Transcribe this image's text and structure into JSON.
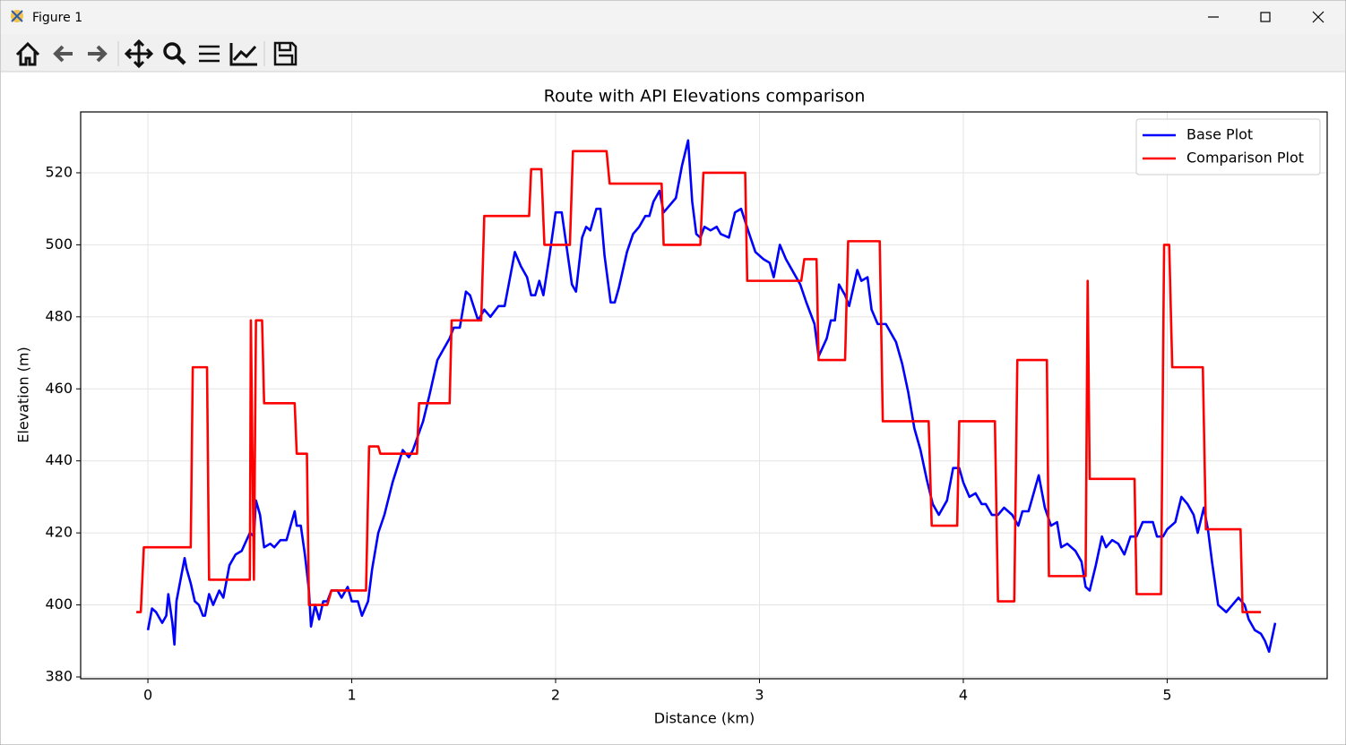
{
  "window": {
    "title": "Figure 1"
  },
  "chart_data": {
    "type": "line",
    "title": "Route with API Elevations comparison",
    "xlabel": "Distance (km)",
    "ylabel": "Elevation (m)",
    "xlim": [
      -0.33,
      5.785
    ],
    "ylim": [
      379.5,
      536.9
    ],
    "xticks": [
      0,
      1,
      2,
      3,
      4,
      5
    ],
    "yticks": [
      380,
      400,
      420,
      440,
      460,
      480,
      500,
      520
    ],
    "grid": true,
    "legend": "upper right",
    "series": [
      {
        "name": "Base Plot",
        "color": "#0000ff",
        "x": [
          0,
          0.02,
          0.04,
          0.07,
          0.09,
          0.1,
          0.12,
          0.13,
          0.14,
          0.16,
          0.18,
          0.19,
          0.21,
          0.23,
          0.25,
          0.27,
          0.28,
          0.3,
          0.32,
          0.35,
          0.37,
          0.4,
          0.43,
          0.46,
          0.5,
          0.52,
          0.53,
          0.55,
          0.57,
          0.6,
          0.62,
          0.65,
          0.68,
          0.7,
          0.72,
          0.73,
          0.75,
          0.77,
          0.79,
          0.8,
          0.82,
          0.84,
          0.86,
          0.88,
          0.9,
          0.93,
          0.95,
          0.98,
          1.0,
          1.03,
          1.05,
          1.08,
          1.1,
          1.13,
          1.16,
          1.2,
          1.25,
          1.28,
          1.3,
          1.35,
          1.38,
          1.42,
          1.45,
          1.48,
          1.5,
          1.53,
          1.56,
          1.58,
          1.62,
          1.65,
          1.68,
          1.72,
          1.75,
          1.78,
          1.8,
          1.83,
          1.86,
          1.88,
          1.9,
          1.92,
          1.94,
          1.97,
          2.0,
          2.03,
          2.06,
          2.08,
          2.1,
          2.13,
          2.15,
          2.17,
          2.2,
          2.22,
          2.24,
          2.27,
          2.29,
          2.31,
          2.35,
          2.38,
          2.41,
          2.44,
          2.46,
          2.48,
          2.51,
          2.53,
          2.56,
          2.59,
          2.62,
          2.65,
          2.67,
          2.69,
          2.71,
          2.73,
          2.76,
          2.79,
          2.81,
          2.85,
          2.88,
          2.91,
          2.95,
          2.98,
          3.02,
          3.05,
          3.07,
          3.1,
          3.13,
          3.16,
          3.2,
          3.23,
          3.27,
          3.29,
          3.33,
          3.35,
          3.37,
          3.39,
          3.42,
          3.44,
          3.48,
          3.5,
          3.53,
          3.55,
          3.58,
          3.62,
          3.67,
          3.7,
          3.73,
          3.76,
          3.79,
          3.82,
          3.85,
          3.88,
          3.92,
          3.95,
          3.98,
          4.0,
          4.03,
          4.06,
          4.09,
          4.11,
          4.14,
          4.17,
          4.2,
          4.24,
          4.27,
          4.29,
          4.32,
          4.35,
          4.37,
          4.4,
          4.43,
          4.46,
          4.48,
          4.51,
          4.55,
          4.58,
          4.6,
          4.62,
          4.65,
          4.68,
          4.7,
          4.73,
          4.76,
          4.79,
          4.82,
          4.85,
          4.88,
          4.9,
          4.93,
          4.95,
          4.98,
          5.0,
          5.04,
          5.07,
          5.1,
          5.13,
          5.15,
          5.18,
          5.2,
          5.22,
          5.25,
          5.29,
          5.32,
          5.35,
          5.38,
          5.4,
          5.43,
          5.46,
          5.48,
          5.5,
          5.53
        ],
        "values": [
          393,
          399,
          398,
          395,
          397,
          403,
          395,
          389,
          401,
          407,
          413,
          410,
          406,
          401,
          400,
          397,
          397,
          403,
          400,
          404,
          402,
          411,
          414,
          415,
          420,
          419,
          429,
          425,
          416,
          417,
          416,
          418,
          418,
          422,
          426,
          422,
          422,
          414,
          404,
          394,
          400,
          396,
          401,
          401,
          404,
          404,
          402,
          405,
          401,
          401,
          397,
          401,
          410,
          420,
          425,
          434,
          443,
          441,
          443,
          451,
          458,
          468,
          471,
          474,
          477,
          477,
          487,
          486,
          479,
          482,
          480,
          483,
          483,
          492,
          498,
          494,
          491,
          486,
          486,
          490,
          486,
          497,
          509,
          509,
          497,
          489,
          487,
          502,
          505,
          504,
          510,
          510,
          497,
          484,
          484,
          488,
          498,
          503,
          505,
          508,
          508,
          512,
          515,
          509,
          511,
          513,
          522,
          529,
          512,
          503,
          502,
          505,
          504,
          505,
          503,
          502,
          509,
          510,
          503,
          498,
          496,
          495,
          491,
          500,
          496,
          493,
          489,
          484,
          478,
          469,
          474,
          479,
          479,
          489,
          486,
          483,
          493,
          490,
          491,
          482,
          478,
          478,
          473,
          467,
          459,
          449,
          443,
          435,
          428,
          425,
          429,
          438,
          438,
          434,
          430,
          431,
          428,
          428,
          425,
          425,
          427,
          425,
          422,
          426,
          426,
          432,
          436,
          427,
          422,
          423,
          416,
          417,
          415,
          412,
          405,
          404,
          411,
          419,
          416,
          418,
          417,
          414,
          419,
          419,
          423,
          423,
          423,
          419,
          419,
          421,
          423,
          430,
          428,
          425,
          420,
          427,
          421,
          412,
          400,
          398,
          400,
          402,
          400,
          396,
          393,
          392,
          390,
          387,
          395
        ]
      },
      {
        "name": "Comparison Plot",
        "color": "#ff0000",
        "x": [
          -0.057,
          -0.035,
          -0.02,
          0.21,
          0.22,
          0.29,
          0.3,
          0.5,
          0.505,
          0.52,
          0.53,
          0.56,
          0.57,
          0.72,
          0.73,
          0.78,
          0.79,
          0.88,
          0.9,
          1.07,
          1.085,
          1.13,
          1.14,
          1.32,
          1.33,
          1.48,
          1.49,
          1.635,
          1.65,
          1.87,
          1.88,
          1.93,
          1.945,
          2.07,
          2.085,
          2.25,
          2.265,
          2.52,
          2.53,
          2.71,
          2.725,
          2.93,
          2.94,
          3.205,
          3.22,
          3.28,
          3.29,
          3.42,
          3.435,
          3.59,
          3.605,
          3.83,
          3.845,
          3.97,
          3.98,
          4.155,
          4.17,
          4.25,
          4.265,
          4.41,
          4.42,
          4.6,
          4.61,
          4.62,
          4.84,
          4.85,
          4.97,
          4.985,
          5.01,
          5.025,
          5.175,
          5.19,
          5.36,
          5.37,
          5.46
        ],
        "values": [
          398,
          398,
          416,
          416,
          466,
          466,
          407,
          407,
          479,
          407,
          479,
          479,
          456,
          456,
          442,
          442,
          400,
          400,
          404,
          404,
          444,
          444,
          442,
          442,
          456,
          456,
          479,
          479,
          508,
          508,
          521,
          521,
          500,
          500,
          526,
          526,
          517,
          517,
          500,
          500,
          520,
          520,
          490,
          490,
          496,
          496,
          468,
          468,
          501,
          501,
          451,
          451,
          422,
          422,
          451,
          451,
          401,
          401,
          468,
          468,
          408,
          408,
          490,
          435,
          435,
          403,
          403,
          500,
          500,
          466,
          466,
          421,
          421,
          398,
          398
        ]
      }
    ]
  }
}
